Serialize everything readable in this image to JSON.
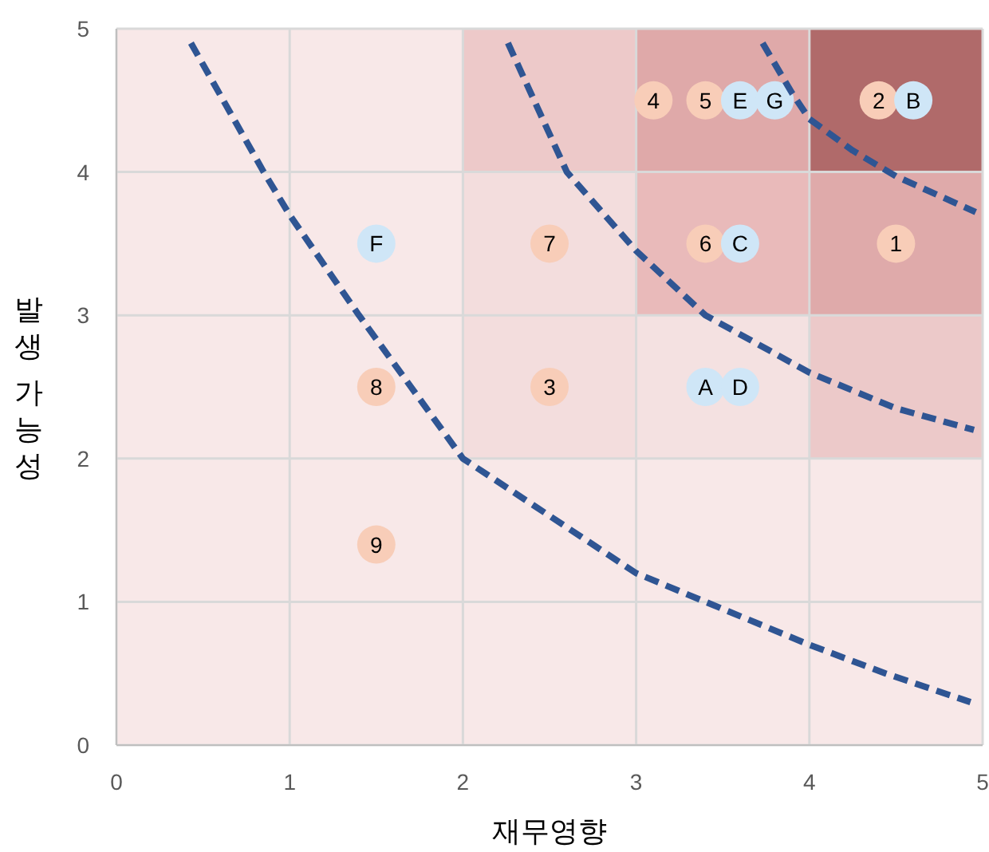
{
  "chart_data": {
    "type": "scatter",
    "xlabel": "재무영향",
    "ylabel": "발생 가능성",
    "xlim": [
      0,
      5
    ],
    "ylim": [
      0,
      5
    ],
    "xticks": [
      0,
      1,
      2,
      3,
      4,
      5
    ],
    "yticks": [
      0,
      1,
      2,
      3,
      4,
      5
    ],
    "grid": true,
    "marker": "circle",
    "series": [
      {
        "name": "1",
        "color": "#f8cdb8",
        "x": [
          4.5
        ],
        "values": [
          3.5
        ]
      },
      {
        "name": "2",
        "color": "#f8cdb8",
        "x": [
          4.4
        ],
        "values": [
          4.5
        ]
      },
      {
        "name": "3",
        "color": "#f8cdb8",
        "x": [
          2.5
        ],
        "values": [
          2.5
        ]
      },
      {
        "name": "4",
        "color": "#f8cdb8",
        "x": [
          3.1
        ],
        "values": [
          4.5
        ]
      },
      {
        "name": "5",
        "color": "#f8cdb8",
        "x": [
          3.4
        ],
        "values": [
          4.5
        ]
      },
      {
        "name": "6",
        "color": "#f8cdb8",
        "x": [
          3.4
        ],
        "values": [
          3.5
        ]
      },
      {
        "name": "7",
        "color": "#f8cdb8",
        "x": [
          2.5
        ],
        "values": [
          3.5
        ]
      },
      {
        "name": "8",
        "color": "#f8cdb8",
        "x": [
          1.5
        ],
        "values": [
          2.5
        ]
      },
      {
        "name": "9",
        "color": "#f8cdb8",
        "x": [
          1.5
        ],
        "values": [
          1.4
        ]
      },
      {
        "name": "A",
        "color": "#cfe6f7",
        "x": [
          3.4
        ],
        "values": [
          2.5
        ]
      },
      {
        "name": "B",
        "color": "#cfe6f7",
        "x": [
          4.6
        ],
        "values": [
          4.5
        ]
      },
      {
        "name": "C",
        "color": "#cfe6f7",
        "x": [
          3.6
        ],
        "values": [
          3.5
        ]
      },
      {
        "name": "D",
        "color": "#cfe6f7",
        "x": [
          3.6
        ],
        "values": [
          2.5
        ]
      },
      {
        "name": "E",
        "color": "#cfe6f7",
        "x": [
          3.6
        ],
        "values": [
          4.5
        ]
      },
      {
        "name": "F",
        "color": "#cfe6f7",
        "x": [
          1.5
        ],
        "values": [
          3.5
        ]
      },
      {
        "name": "G",
        "color": "#cfe6f7",
        "x": [
          3.8
        ],
        "values": [
          4.5
        ]
      },
      {
        "type": "line",
        "color": "#2f5593",
        "line_style": "dashed",
        "marker": "none",
        "x": [
          0.43,
          0.85,
          1.0,
          1.4,
          2.0,
          2.5,
          3.0,
          3.4,
          4.0,
          4.44,
          4.93
        ],
        "values": [
          4.9,
          4.0,
          3.7,
          3.0,
          2.0,
          1.6,
          1.2,
          1.0,
          0.7,
          0.5,
          0.3
        ]
      },
      {
        "type": "line",
        "color": "#2f5593",
        "line_style": "dashed",
        "marker": "none",
        "x": [
          2.26,
          2.6,
          3.0,
          3.4,
          4.0,
          4.5,
          4.95
        ],
        "values": [
          4.9,
          4.0,
          3.45,
          3.0,
          2.6,
          2.35,
          2.2
        ]
      },
      {
        "type": "line",
        "color": "#2f5593",
        "line_style": "dashed",
        "marker": "none",
        "x": [
          3.73,
          3.9,
          4.0,
          4.25,
          4.5,
          4.96
        ],
        "values": [
          4.9,
          4.55,
          4.37,
          4.15,
          3.97,
          3.72
        ]
      }
    ]
  }
}
